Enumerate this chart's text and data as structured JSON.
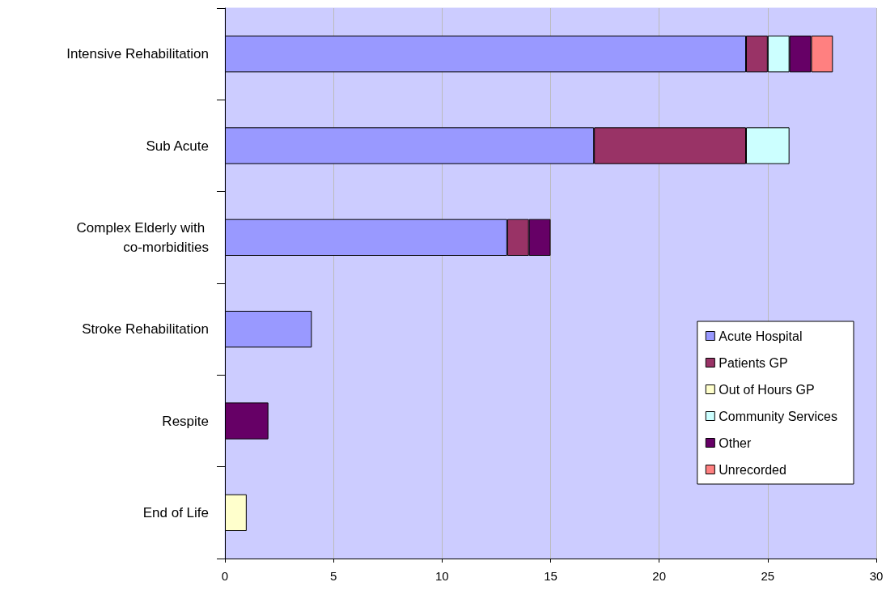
{
  "chart_data": {
    "type": "bar",
    "orientation": "horizontal",
    "stacked": true,
    "categories": [
      "Intensive Rehabilitation",
      "Sub Acute",
      "Complex Elderly with co-morbidities",
      "Stroke Rehabilitation",
      "Respite",
      "End of Life"
    ],
    "series": [
      {
        "name": "Acute Hospital",
        "color": "#9999ff",
        "values": [
          24,
          17,
          13,
          4,
          0,
          0
        ]
      },
      {
        "name": "Patients GP",
        "color": "#993366",
        "values": [
          1,
          7,
          1,
          0,
          0,
          0
        ]
      },
      {
        "name": "Out of Hours GP",
        "color": "#ffffcc",
        "values": [
          0,
          0,
          0,
          0,
          0,
          1
        ]
      },
      {
        "name": "Community Services",
        "color": "#ccffff",
        "values": [
          1,
          2,
          0,
          0,
          0,
          0
        ]
      },
      {
        "name": "Other",
        "color": "#660066",
        "values": [
          1,
          0,
          1,
          0,
          2,
          0
        ]
      },
      {
        "name": "Unrecorded",
        "color": "#ff8080",
        "values": [
          1,
          0,
          0,
          0,
          0,
          0
        ]
      }
    ],
    "xlim": [
      0,
      30
    ],
    "xticks": [
      0,
      5,
      10,
      15,
      20,
      25,
      30
    ],
    "grid": "x",
    "legend": "right"
  }
}
